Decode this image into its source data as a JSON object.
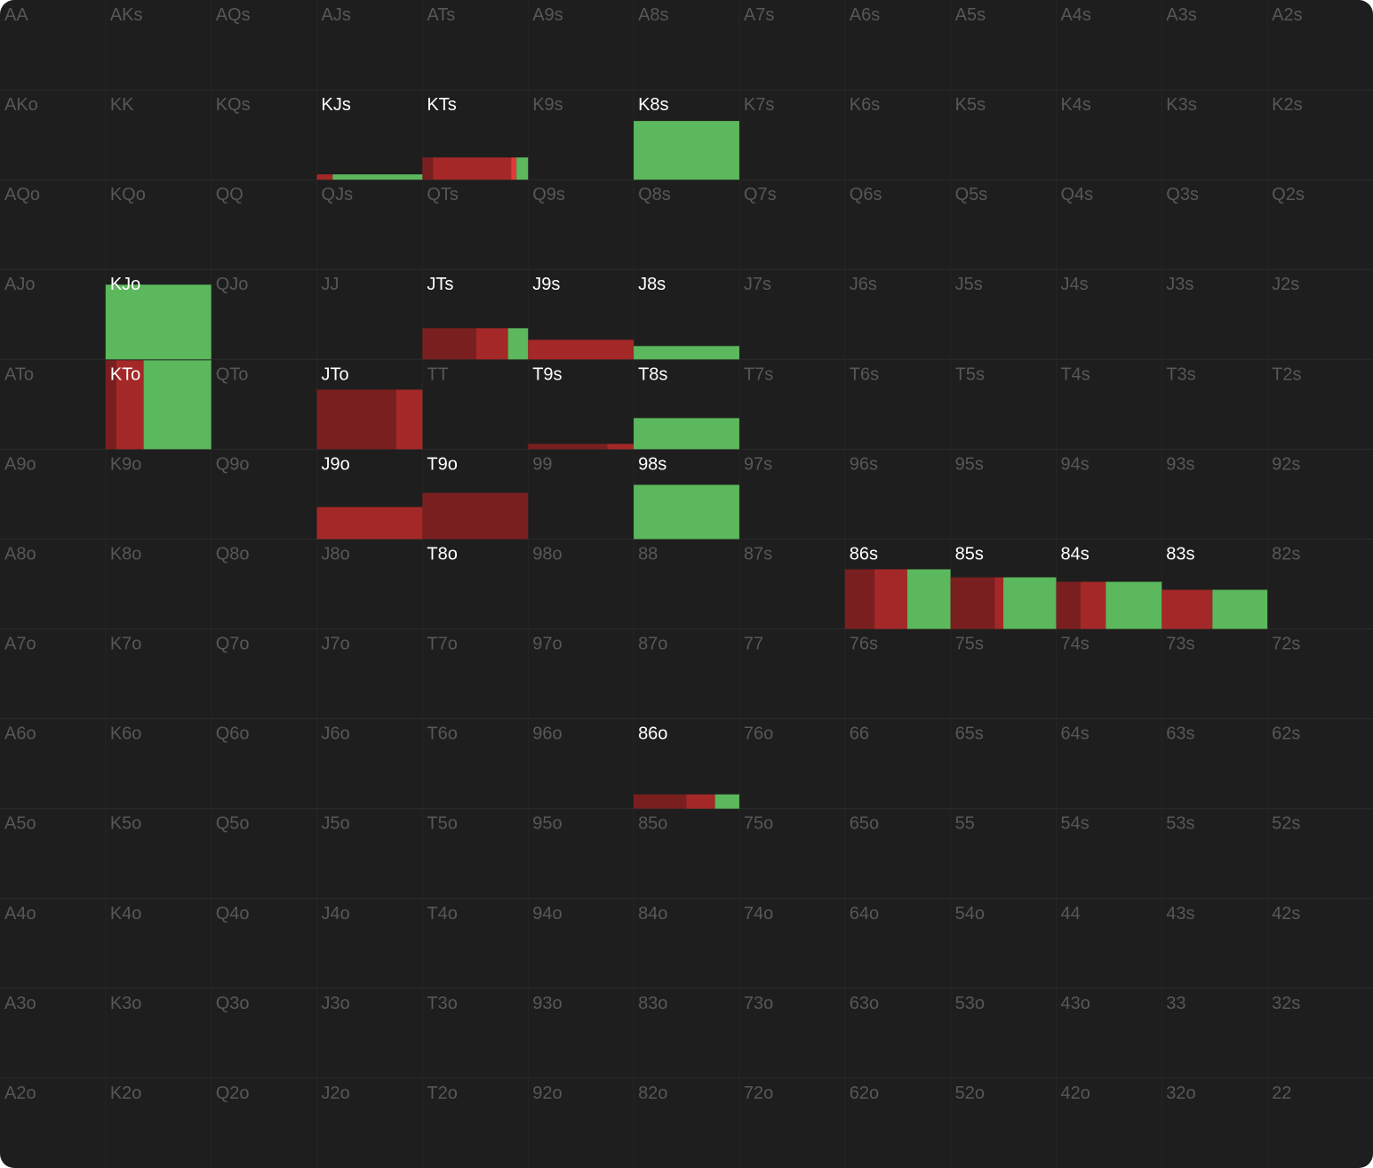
{
  "grid": {
    "rows": [
      [
        "AA",
        "AKs",
        "AQs",
        "AJs",
        "ATs",
        "A9s",
        "A8s",
        "A7s",
        "A6s",
        "A5s",
        "A4s",
        "A3s",
        "A2s"
      ],
      [
        "AKo",
        "KK",
        "KQs",
        "KJs",
        "KTs",
        "K9s",
        "K8s",
        "K7s",
        "K6s",
        "K5s",
        "K4s",
        "K3s",
        "K2s"
      ],
      [
        "AQo",
        "KQo",
        "QQ",
        "QJs",
        "QTs",
        "Q9s",
        "Q8s",
        "Q7s",
        "Q6s",
        "Q5s",
        "Q4s",
        "Q3s",
        "Q2s"
      ],
      [
        "AJo",
        "KJo",
        "QJo",
        "JJ",
        "JTs",
        "J9s",
        "J8s",
        "J7s",
        "J6s",
        "J5s",
        "J4s",
        "J3s",
        "J2s"
      ],
      [
        "ATo",
        "KTo",
        "QTo",
        "JTo",
        "TT",
        "T9s",
        "T8s",
        "T7s",
        "T6s",
        "T5s",
        "T4s",
        "T3s",
        "T2s"
      ],
      [
        "A9o",
        "K9o",
        "Q9o",
        "J9o",
        "T9o",
        "99",
        "98s",
        "97s",
        "96s",
        "95s",
        "94s",
        "93s",
        "92s"
      ],
      [
        "A8o",
        "K8o",
        "Q8o",
        "J8o",
        "T8o",
        "98o",
        "88",
        "87s",
        "86s",
        "85s",
        "84s",
        "83s",
        "82s"
      ],
      [
        "A7o",
        "K7o",
        "Q7o",
        "J7o",
        "T7o",
        "97o",
        "87o",
        "77",
        "76s",
        "75s",
        "74s",
        "73s",
        "72s"
      ],
      [
        "A6o",
        "K6o",
        "Q6o",
        "J6o",
        "T6o",
        "96o",
        "86o",
        "76o",
        "66",
        "65s",
        "64s",
        "63s",
        "62s"
      ],
      [
        "A5o",
        "K5o",
        "Q5o",
        "J5o",
        "T5o",
        "95o",
        "85o",
        "75o",
        "65o",
        "55",
        "54s",
        "53s",
        "52s"
      ],
      [
        "A4o",
        "K4o",
        "Q4o",
        "J4o",
        "T4o",
        "94o",
        "84o",
        "74o",
        "64o",
        "54o",
        "44",
        "43s",
        "42s"
      ],
      [
        "A3o",
        "K3o",
        "Q3o",
        "J3o",
        "T3o",
        "93o",
        "83o",
        "73o",
        "63o",
        "53o",
        "43o",
        "33",
        "32s"
      ],
      [
        "A2o",
        "K2o",
        "Q2o",
        "J2o",
        "T2o",
        "92o",
        "82o",
        "72o",
        "62o",
        "52o",
        "42o",
        "32o",
        "22"
      ]
    ]
  },
  "action_colors": [
    "#7a1f1f",
    "#a52828",
    "#e03a3a",
    "#5cb85c"
  ],
  "hands": {
    "KJs": {
      "frequency": 6,
      "actions": [
        0,
        15,
        0,
        85
      ]
    },
    "KTs": {
      "frequency": 25,
      "actions": [
        10,
        74,
        5,
        11
      ]
    },
    "K8s": {
      "frequency": 66,
      "actions": [
        0,
        0,
        0,
        100
      ]
    },
    "KJo": {
      "frequency": 84,
      "actions": [
        0,
        0,
        0,
        100
      ]
    },
    "JTs": {
      "frequency": 35,
      "actions": [
        51,
        30,
        0,
        19
      ]
    },
    "J9s": {
      "frequency": 22,
      "actions": [
        0,
        100,
        0,
        0
      ]
    },
    "J8s": {
      "frequency": 15,
      "actions": [
        0,
        0,
        0,
        100
      ]
    },
    "KTo": {
      "frequency": 100,
      "actions": [
        10,
        26,
        0,
        64
      ]
    },
    "JTo": {
      "frequency": 67,
      "actions": [
        75,
        25,
        0,
        0
      ]
    },
    "T9s": {
      "frequency": 6,
      "actions": [
        75,
        25,
        0,
        0
      ]
    },
    "T8s": {
      "frequency": 35,
      "actions": [
        0,
        0,
        0,
        100
      ]
    },
    "J9o": {
      "frequency": 36,
      "actions": [
        0,
        100,
        0,
        0
      ]
    },
    "T9o": {
      "frequency": 52,
      "actions": [
        100,
        0,
        0,
        0
      ]
    },
    "98s": {
      "frequency": 61,
      "actions": [
        0,
        0,
        0,
        100
      ]
    },
    "T8o": {
      "frequency": 0,
      "actions": [
        0,
        0,
        0,
        0
      ]
    },
    "86s": {
      "frequency": 67,
      "actions": [
        28,
        31,
        0,
        41
      ]
    },
    "85s": {
      "frequency": 58,
      "actions": [
        42,
        8,
        0,
        50
      ]
    },
    "84s": {
      "frequency": 53,
      "actions": [
        23,
        24,
        0,
        53
      ]
    },
    "83s": {
      "frequency": 44,
      "actions": [
        0,
        48,
        0,
        52
      ]
    },
    "86o": {
      "frequency": 16,
      "actions": [
        50,
        27,
        0,
        23
      ]
    }
  }
}
